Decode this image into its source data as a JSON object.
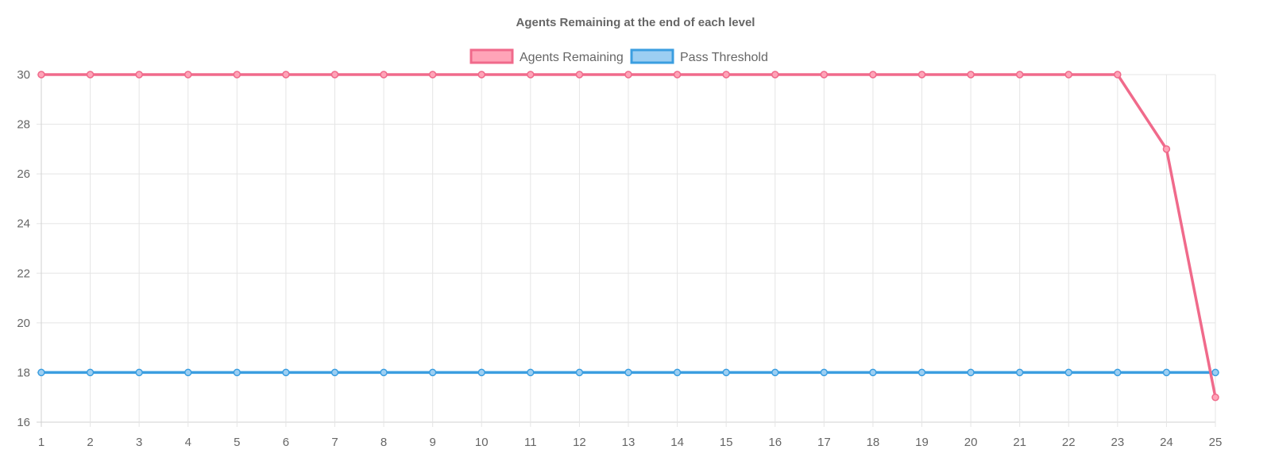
{
  "chart_data": {
    "type": "line",
    "title": "Agents Remaining at the end of each level",
    "xlabel": "",
    "ylabel": "",
    "categories": [
      "1",
      "2",
      "3",
      "4",
      "5",
      "6",
      "7",
      "8",
      "9",
      "10",
      "11",
      "12",
      "13",
      "14",
      "15",
      "16",
      "17",
      "18",
      "19",
      "20",
      "21",
      "22",
      "23",
      "24",
      "25"
    ],
    "ylim": [
      16,
      30
    ],
    "yticks": [
      16,
      18,
      20,
      22,
      24,
      26,
      28,
      30
    ],
    "grid": true,
    "legend_position": "top-center",
    "series": [
      {
        "name": "Agents Remaining",
        "color": "#f06a8b",
        "fill": "#ffa4b8",
        "values": [
          30,
          30,
          30,
          30,
          30,
          30,
          30,
          30,
          30,
          30,
          30,
          30,
          30,
          30,
          30,
          30,
          30,
          30,
          30,
          30,
          30,
          30,
          30,
          27,
          17
        ]
      },
      {
        "name": "Pass Threshold",
        "color": "#3b9ee0",
        "fill": "#9ccef2",
        "values": [
          18,
          18,
          18,
          18,
          18,
          18,
          18,
          18,
          18,
          18,
          18,
          18,
          18,
          18,
          18,
          18,
          18,
          18,
          18,
          18,
          18,
          18,
          18,
          18,
          18
        ]
      }
    ]
  }
}
